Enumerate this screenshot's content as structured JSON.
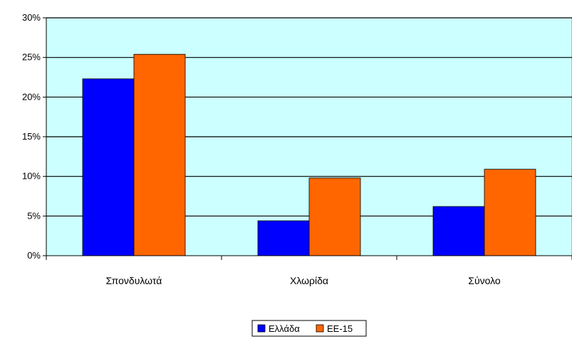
{
  "chart_data": {
    "type": "bar",
    "categories": [
      "Σπονδυλωτά",
      "Χλωρίδα",
      "Σύνολο"
    ],
    "series": [
      {
        "name": "Ελλάδα",
        "color": "#0000FF",
        "values": [
          22.3,
          4.4,
          6.2
        ]
      },
      {
        "name": "ΕΕ-15",
        "color": "#FF6600",
        "values": [
          25.4,
          9.8,
          10.9
        ]
      }
    ],
    "y_ticks": [
      0,
      5,
      10,
      15,
      20,
      25,
      30
    ],
    "y_tick_labels": [
      "0%",
      "5%",
      "10%",
      "15%",
      "20%",
      "25%",
      "30%"
    ],
    "ylim": [
      0,
      30
    ],
    "grid": true,
    "legend_position": "bottom-center",
    "plot_background": "#CCFFFF",
    "gridline_color": "#000000"
  }
}
